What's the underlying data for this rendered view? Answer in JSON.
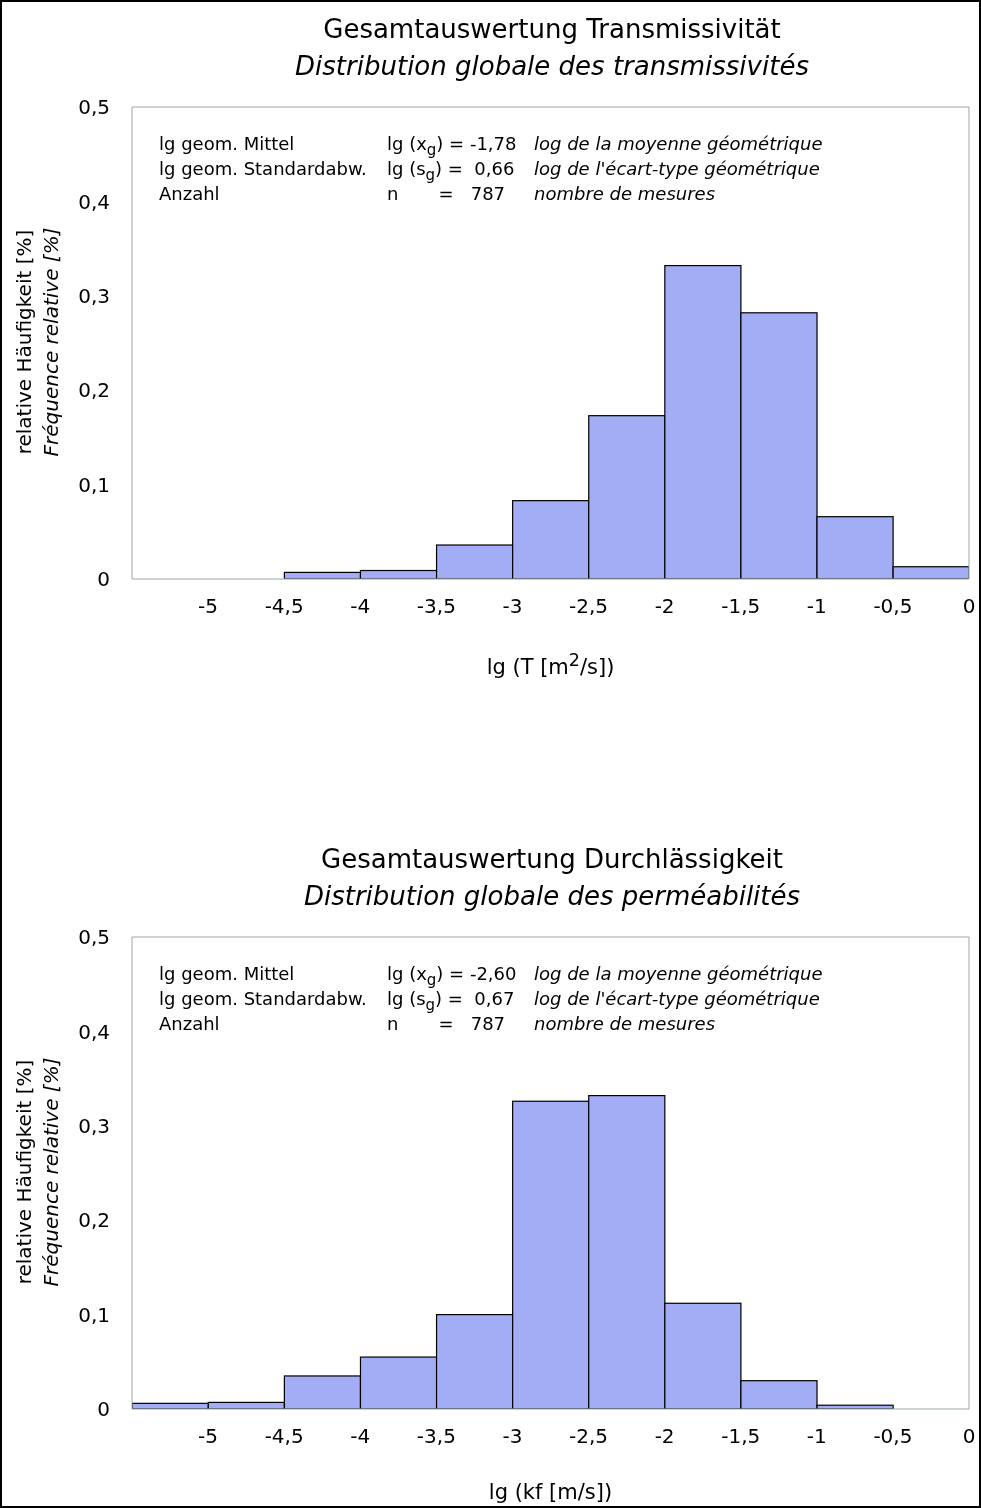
{
  "chart_data": [
    {
      "type": "histogram",
      "title": "Gesamtauswertung Transmissivität",
      "subtitle": "Distribution globale des transmissivités",
      "xlabel": "lg (T [m$^{2}$/s])",
      "ylabel": "relative Häufigkeit [%]\nFréquence relative [%]",
      "bins": [
        -5.5,
        -5,
        -4.5,
        -4,
        -3.5,
        -3,
        -2.5,
        -2,
        -1.5,
        -1,
        -0.5,
        0
      ],
      "values": [
        0,
        0,
        0.007,
        0.009,
        0.036,
        0.083,
        0.173,
        0.332,
        0.282,
        0.066,
        0.013
      ],
      "color": "#a3adf5",
      "xlim": [
        -5.5,
        0
      ],
      "xticks": [
        -5,
        {
          "value": -4.5,
          "label": "-4,5"
        },
        -4,
        {
          "value": -3.5,
          "label": "-3,5"
        },
        -3,
        {
          "value": -2.5,
          "label": "-2,5"
        },
        -2,
        {
          "value": -1.5,
          "label": "-1,5"
        },
        -1,
        {
          "value": -0.5,
          "label": "-0,5"
        },
        0
      ],
      "ylim": [
        0,
        0.5
      ],
      "yticks": [
        0,
        {
          "value": 0.1,
          "label": "0,1"
        },
        {
          "value": 0.2,
          "label": "0,2"
        },
        {
          "value": 0.3,
          "label": "0,3"
        },
        {
          "value": 0.4,
          "label": "0,4"
        },
        {
          "value": 0.5,
          "label": "0,5"
        }
      ],
      "grid": false,
      "legend": false,
      "annotations": [
        "lg geom. Mittel",
        "lg (x$_{g}$) = -1,78",
        "log de la moyenne géométrique",
        "lg geom. Standardabw.",
        "lg (s$_{g}$) =  0,66",
        "log de l'écart-type géométrique",
        "Anzahl",
        "n       =   787",
        "nombre de mesures"
      ]
    },
    {
      "type": "histogram",
      "title": "Gesamtauswertung Durchlässigkeit",
      "subtitle": "Distribution globale des perméabilités",
      "xlabel": "lg (kf [m/s])",
      "ylabel": "relative Häufigkeit [%]\nFréquence relative [%]",
      "bins": [
        -5.5,
        -5,
        -4.5,
        -4,
        -3.5,
        -3,
        -2.5,
        -2,
        -1.5,
        -1,
        -0.5,
        0
      ],
      "values": [
        0.006,
        0.007,
        0.035,
        0.055,
        0.1,
        0.326,
        0.332,
        0.112,
        0.03,
        0.004,
        0
      ],
      "color": "#a3adf5",
      "xlim": [
        -5.5,
        0
      ],
      "xticks": [
        -5,
        {
          "value": -4.5,
          "label": "-4,5"
        },
        -4,
        {
          "value": -3.5,
          "label": "-3,5"
        },
        -3,
        {
          "value": -2.5,
          "label": "-2,5"
        },
        -2,
        {
          "value": -1.5,
          "label": "-1,5"
        },
        -1,
        {
          "value": -0.5,
          "label": "-0,5"
        },
        0
      ],
      "ylim": [
        0,
        0.5
      ],
      "yticks": [
        0,
        {
          "value": 0.1,
          "label": "0,1"
        },
        {
          "value": 0.2,
          "label": "0,2"
        },
        {
          "value": 0.3,
          "label": "0,3"
        },
        {
          "value": 0.4,
          "label": "0,4"
        },
        {
          "value": 0.5,
          "label": "0,5"
        }
      ],
      "grid": false,
      "legend": false,
      "annotations": [
        "lg geom. Mittel",
        "lg (x$_{g}$) = -2,60",
        "log de la moyenne géométrique",
        "lg geom. Standardabw.",
        "lg (s$_{g}$) =  0,67",
        "log de l'écart-type géométrique",
        "Anzahl",
        "n       =   787",
        "nombre de mesures"
      ]
    }
  ]
}
